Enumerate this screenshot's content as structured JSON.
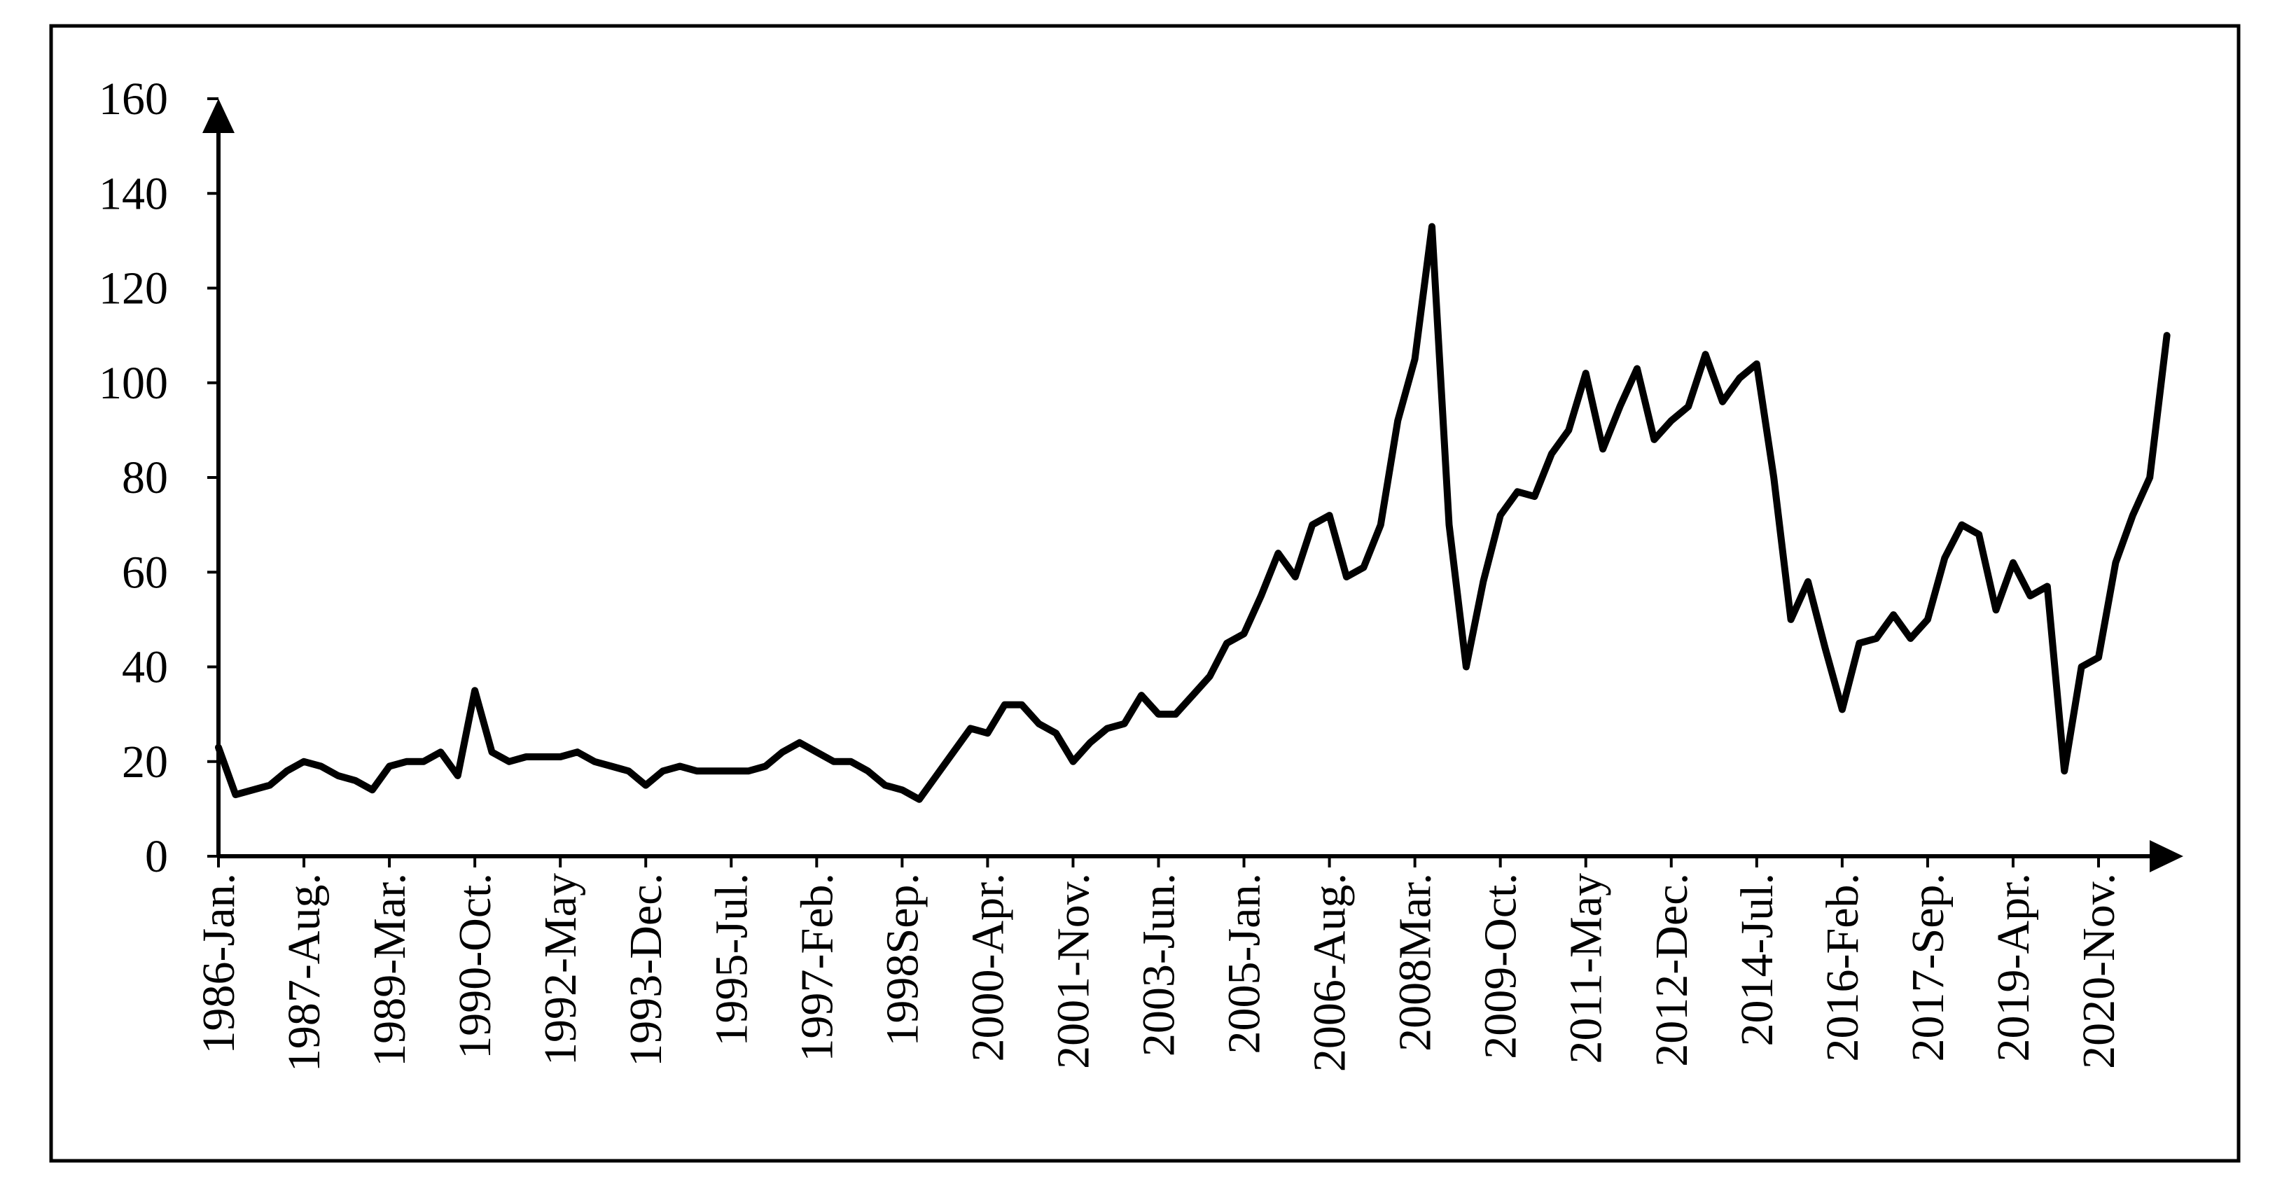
{
  "chart_data": {
    "type": "line",
    "categories": [
      "1986-Jan.",
      null,
      null,
      null,
      null,
      "1987-Aug.",
      null,
      null,
      null,
      null,
      "1989-Mar.",
      null,
      null,
      null,
      null,
      "1990-Oct.",
      null,
      null,
      null,
      null,
      "1992-May",
      null,
      null,
      null,
      null,
      "1993-Dec.",
      null,
      null,
      null,
      null,
      "1995-Jul.",
      null,
      null,
      null,
      null,
      "1997-Feb.",
      null,
      null,
      null,
      null,
      "1998Sep.",
      null,
      null,
      null,
      null,
      "2000-Apr.",
      null,
      null,
      null,
      null,
      "2001-Nov.",
      null,
      null,
      null,
      null,
      "2003-Jun.",
      null,
      null,
      null,
      null,
      "2005-Jan.",
      null,
      null,
      null,
      null,
      "2006-Aug.",
      null,
      null,
      null,
      null,
      "2008Mar.",
      null,
      null,
      null,
      null,
      "2009-Oct.",
      null,
      null,
      null,
      null,
      "2011-May",
      null,
      null,
      null,
      null,
      "2012-Dec.",
      null,
      null,
      null,
      null,
      "2014-Jul.",
      null,
      null,
      null,
      null,
      "2016-Feb.",
      null,
      null,
      null,
      null,
      "2017-Sep.",
      null,
      null,
      null,
      null,
      "2019-Apr.",
      null,
      null,
      null,
      null,
      "2020-Nov.",
      null,
      null,
      null,
      null
    ],
    "values": [
      23,
      13,
      14,
      15,
      18,
      20,
      19,
      17,
      16,
      14,
      19,
      20,
      20,
      22,
      17,
      35,
      22,
      20,
      21,
      21,
      21,
      22,
      20,
      19,
      18,
      15,
      18,
      19,
      18,
      18,
      18,
      18,
      19,
      22,
      24,
      22,
      20,
      20,
      18,
      15,
      14,
      12,
      17,
      22,
      27,
      26,
      32,
      32,
      28,
      26,
      20,
      24,
      27,
      28,
      34,
      30,
      30,
      34,
      38,
      45,
      47,
      55,
      64,
      59,
      70,
      72,
      59,
      61,
      70,
      92,
      105,
      133,
      70,
      40,
      58,
      72,
      77,
      76,
      85,
      90,
      102,
      86,
      95,
      103,
      88,
      92,
      95,
      106,
      96,
      101,
      104,
      80,
      50,
      58,
      44,
      31,
      45,
      46,
      51,
      46,
      50,
      63,
      70,
      68,
      52,
      62,
      55,
      57,
      18,
      40,
      42,
      62,
      72,
      80,
      110
    ],
    "color": "#000000",
    "ylim": [
      0,
      160
    ],
    "yticks": [
      0,
      20,
      40,
      60,
      80,
      100,
      120,
      140,
      160
    ]
  }
}
